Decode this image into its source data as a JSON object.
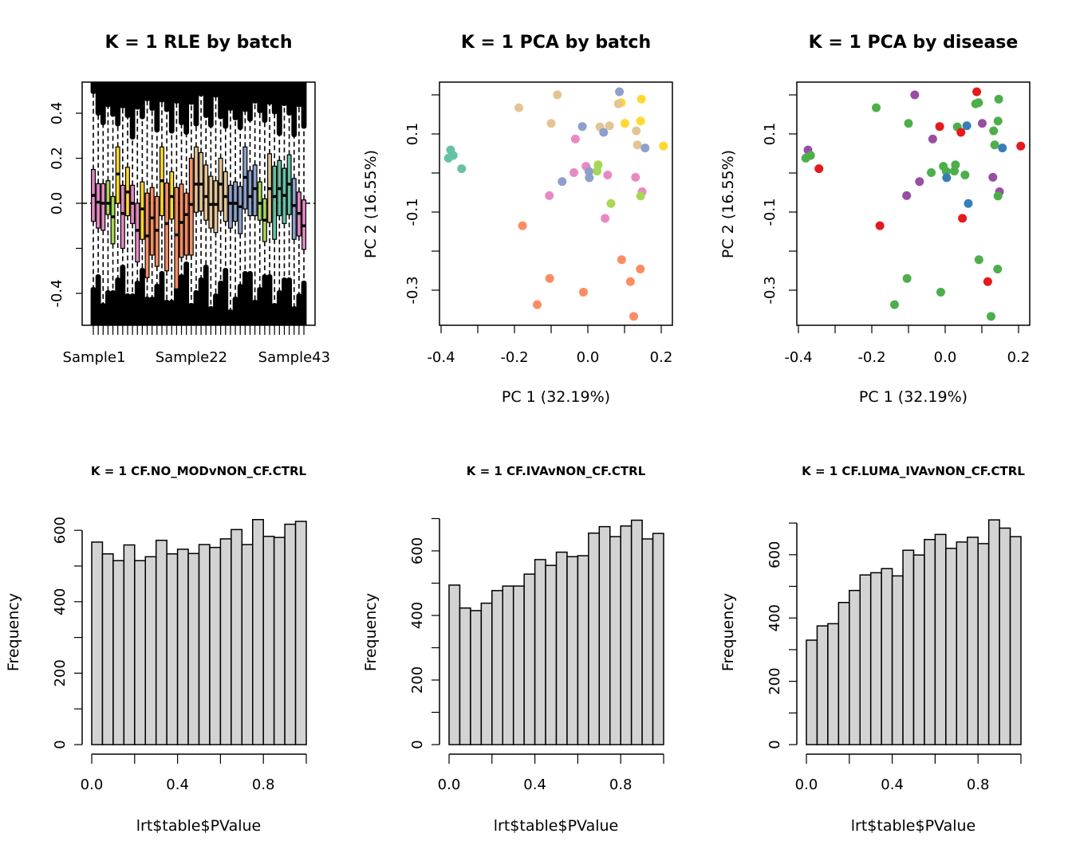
{
  "chart_data": [
    {
      "type": "box",
      "title": "K = 1 RLE by batch",
      "xlabel": "",
      "ylabel": "",
      "ylim": [
        -0.54,
        0.54
      ],
      "yticks": [
        -0.4,
        -0.2,
        0.0,
        0.2,
        0.4
      ],
      "ytick_labels": [
        "-0.4",
        "",
        "0.0",
        "0.2",
        "0.4"
      ],
      "xtick_labels": [
        "Sample1",
        "Sample22",
        "Sample43"
      ],
      "reference_line": 0,
      "batch_colors": {
        "pink": "#E78AC3",
        "green": "#A6D854",
        "yellow": "#FFD92F",
        "orange": "#FC8D62",
        "tan": "#E5C494",
        "blue": "#8DA0CB",
        "teal": "#66C2A5"
      },
      "boxes": [
        [
          "pink",
          0.15,
          0.035,
          -0.08
        ],
        [
          "pink",
          0.087,
          0.005,
          -0.11
        ],
        [
          "pink",
          0.087,
          0,
          -0.12
        ],
        [
          "green",
          0.1,
          0,
          -0.05
        ],
        [
          "green",
          0.03,
          -0.06,
          -0.18
        ],
        [
          "yellow",
          0.25,
          0.13,
          0
        ],
        [
          "pink",
          0.08,
          -0.045,
          -0.2
        ],
        [
          "yellow",
          0.16,
          0.05,
          -0.055
        ],
        [
          "pink",
          0.08,
          0,
          -0.09
        ],
        [
          "pink",
          0,
          -0.12,
          -0.26
        ],
        [
          "yellow",
          0.095,
          -0.025,
          -0.16
        ],
        [
          "orange",
          0.045,
          -0.145,
          -0.33
        ],
        [
          "orange",
          0.07,
          -0.065,
          -0.23
        ],
        [
          "orange",
          0.03,
          -0.12,
          -0.28
        ],
        [
          "yellow",
          0.25,
          0.1,
          -0.055
        ],
        [
          "orange",
          0.09,
          -0.09,
          -0.3
        ],
        [
          "yellow",
          0.14,
          0.03,
          -0.07
        ],
        [
          "orange",
          0.07,
          -0.14,
          -0.38
        ],
        [
          "orange",
          0.085,
          -0.085,
          -0.24
        ],
        [
          "orange",
          0.045,
          -0.05,
          -0.23
        ],
        [
          "orange",
          0.2,
          -0.005,
          -0.23
        ],
        [
          "tan",
          0.25,
          0.085,
          -0.04
        ],
        [
          "tan",
          0.225,
          0.085,
          -0.035
        ],
        [
          "tan",
          0.17,
          0.03,
          -0.075
        ],
        [
          "tan",
          0.12,
          -0.005,
          -0.11
        ],
        [
          "tan",
          0.1,
          -0.005,
          -0.13
        ],
        [
          "tan",
          0.2,
          0.085,
          -0.035
        ],
        [
          "tan",
          0.14,
          0.03,
          -0.08
        ],
        [
          "blue",
          0.08,
          0,
          -0.11
        ],
        [
          "blue",
          0.095,
          0,
          -0.08
        ],
        [
          "blue",
          0.075,
          -0.015,
          -0.135
        ],
        [
          "blue",
          0.25,
          0.115,
          -0.025
        ],
        [
          "blue",
          0.145,
          0.03,
          -0.055
        ],
        [
          "blue",
          0.17,
          0.065,
          -0.055
        ],
        [
          "green",
          0.095,
          0,
          -0.075
        ],
        [
          "green",
          0.02,
          -0.075,
          -0.17
        ],
        [
          "tan",
          0.22,
          0.065,
          -0.085
        ],
        [
          "teal",
          0.165,
          0.03,
          -0.16
        ],
        [
          "teal",
          0.19,
          0.065,
          -0.055
        ],
        [
          "teal",
          0.155,
          0.035,
          -0.09
        ],
        [
          "teal",
          0.215,
          0.085,
          -0.05
        ],
        [
          "blue",
          0.11,
          -0.01,
          -0.16
        ],
        [
          "pink",
          0.05,
          -0.045,
          -0.145
        ],
        [
          "pink",
          0.015,
          -0.1,
          -0.205
        ]
      ],
      "box_fields": [
        "batch",
        "q3",
        "median",
        "q1"
      ]
    },
    {
      "type": "scatter",
      "title": "K = 1 PCA by batch",
      "xlabel": "PC 1 (32.19%)",
      "ylabel": "PC 2 (16.55%)",
      "xticks": [
        -0.4,
        -0.3,
        -0.2,
        -0.1,
        0,
        0.1,
        0.2
      ],
      "xtick_labels": [
        "-0.4",
        "",
        "-0.2",
        "",
        "0.0",
        "",
        "0.2"
      ],
      "yticks": [
        0.2,
        0.1,
        0,
        -0.1,
        -0.2,
        -0.3
      ],
      "ytick_labels": [
        "",
        "0.1",
        "",
        "-0.1",
        "",
        "-0.3"
      ],
      "colors": [
        "#8DA0CB",
        "#E5C494",
        "#FFD92F",
        "#FFD92F",
        "#E5C494",
        "#E5C494",
        "#E5C494",
        "#8DA0CB",
        "#E5C494",
        "#E5C494",
        "#FFD92F",
        "#FFD92F",
        "#8DA0CB",
        "#E5C494",
        "#E78AC3",
        "#E5C494",
        "#8DA0CB",
        "#FFD92F",
        "#66C2A5",
        "#66C2A5",
        "#66C2A5",
        "#66C2A5",
        "#A6D854",
        "#A6D854",
        "#E78AC3",
        "#8DA0CB",
        "#8DA0CB",
        "#E78AC3",
        "#E78AC3",
        "#8DA0CB",
        "#E78AC3",
        "#E78AC3",
        "#E78AC3",
        "#A6D854",
        "#A6D854",
        "#E78AC3",
        "#FC8D62",
        "#FC8D62",
        "#FC8D62",
        "#FC8D62",
        "#FC8D62",
        "#FC8D62",
        "#FC8D62",
        "#FC8D62"
      ]
    },
    {
      "type": "scatter",
      "title": "K = 1 PCA by disease",
      "xlabel": "PC 1 (32.19%)",
      "ylabel": "PC 2 (16.55%)",
      "xticks": [
        -0.4,
        -0.3,
        -0.2,
        -0.1,
        0,
        0.1,
        0.2
      ],
      "xtick_labels": [
        "-0.4",
        "",
        "-0.2",
        "",
        "0.0",
        "",
        "0.2"
      ],
      "yticks": [
        0.2,
        0.1,
        0,
        -0.1,
        -0.2,
        -0.3
      ],
      "ytick_labels": [
        "",
        "0.1",
        "",
        "-0.1",
        "",
        "-0.3"
      ],
      "colors": [
        "#E41A1C",
        "#984EA3",
        "#4DAF4A",
        "#4DAF4A",
        "#4DAF4A",
        "#4DAF4A",
        "#4DAF4A",
        "#E41A1C",
        "#4DAF4A",
        "#377EB8",
        "#984EA3",
        "#4DAF4A",
        "#E41A1C",
        "#4DAF4A",
        "#984EA3",
        "#4DAF4A",
        "#377EB8",
        "#E41A1C",
        "#984EA3",
        "#4DAF4A",
        "#4DAF4A",
        "#E41A1C",
        "#4DAF4A",
        "#4DAF4A",
        "#4DAF4A",
        "#4DAF4A",
        "#377EB8",
        "#4DAF4A",
        "#4DAF4A",
        "#984EA3",
        "#984EA3",
        "#984EA3",
        "#984EA3",
        "#4DAF4A",
        "#377EB8",
        "#E41A1C",
        "#E41A1C",
        "#4DAF4A",
        "#4DAF4A",
        "#4DAF4A",
        "#E41A1C",
        "#4DAF4A",
        "#4DAF4A",
        "#4DAF4A"
      ]
    },
    {
      "type": "bar",
      "title": "K = 1 CF.NO_MODvNON_CF.CTRL",
      "xlabel": "lrt$table$PValue",
      "ylabel": "Frequency",
      "bin_edges": [
        0,
        0.05,
        0.1,
        0.15,
        0.2,
        0.25,
        0.3,
        0.35,
        0.4,
        0.45,
        0.5,
        0.55,
        0.6,
        0.65,
        0.7,
        0.75,
        0.8,
        0.85,
        0.9,
        0.95,
        1.0
      ],
      "values": [
        567,
        534,
        515,
        559,
        515,
        526,
        572,
        534,
        547,
        535,
        560,
        552,
        576,
        602,
        560,
        630,
        583,
        580,
        617,
        625
      ],
      "xticks": [
        0,
        0.2,
        0.4,
        0.6,
        0.8,
        1.0
      ],
      "xtick_labels": [
        "0.0",
        "",
        "0.4",
        "",
        "0.8",
        ""
      ],
      "yticks": [
        0,
        100,
        200,
        300,
        400,
        500,
        600
      ],
      "ytick_labels": [
        "0",
        "",
        "200",
        "",
        "400",
        "",
        "600"
      ],
      "fill": "#D3D3D3"
    },
    {
      "type": "bar",
      "title": "K = 1 CF.IVAvNON_CF.CTRL",
      "xlabel": "lrt$table$PValue",
      "ylabel": "Frequency",
      "bin_edges": [
        0,
        0.05,
        0.1,
        0.15,
        0.2,
        0.25,
        0.3,
        0.35,
        0.4,
        0.45,
        0.5,
        0.55,
        0.6,
        0.65,
        0.7,
        0.75,
        0.8,
        0.85,
        0.9,
        0.95,
        1.0
      ],
      "values": [
        494,
        423,
        415,
        438,
        477,
        491,
        491,
        528,
        573,
        555,
        596,
        582,
        585,
        655,
        675,
        644,
        677,
        695,
        637,
        654
      ],
      "xticks": [
        0,
        0.2,
        0.4,
        0.6,
        0.8,
        1.0
      ],
      "xtick_labels": [
        "0.0",
        "",
        "0.4",
        "",
        "0.8",
        ""
      ],
      "yticks": [
        0,
        100,
        200,
        300,
        400,
        500,
        600,
        700
      ],
      "ytick_labels": [
        "0",
        "",
        "200",
        "",
        "400",
        "",
        "600",
        ""
      ],
      "fill": "#D3D3D3"
    },
    {
      "type": "bar",
      "title": "K = 1 CF.LUMA_IVAvNON_CF.CTRL",
      "xlabel": "lrt$table$PValue",
      "ylabel": "Frequency",
      "bin_edges": [
        0,
        0.05,
        0.1,
        0.15,
        0.2,
        0.25,
        0.3,
        0.35,
        0.4,
        0.45,
        0.5,
        0.55,
        0.6,
        0.65,
        0.7,
        0.75,
        0.8,
        0.85,
        0.9,
        0.95,
        1.0
      ],
      "values": [
        330,
        375,
        382,
        449,
        487,
        536,
        543,
        556,
        533,
        614,
        599,
        648,
        664,
        620,
        640,
        655,
        635,
        710,
        684,
        657
      ],
      "xticks": [
        0,
        0.2,
        0.4,
        0.6,
        0.8,
        1.0
      ],
      "xtick_labels": [
        "0.0",
        "",
        "0.4",
        "",
        "0.8",
        ""
      ],
      "yticks": [
        0,
        100,
        200,
        300,
        400,
        500,
        600,
        700
      ],
      "ytick_labels": [
        "0",
        "",
        "200",
        "",
        "400",
        "",
        "600",
        ""
      ],
      "fill": "#D3D3D3"
    }
  ],
  "pca_points": {
    "x": [
      0.086,
      -0.083,
      0.146,
      0.091,
      0.083,
      -0.188,
      -0.1,
      -0.015,
      0.033,
      0.059,
      0.101,
      0.144,
      0.043,
      0.132,
      -0.034,
      0.135,
      0.156,
      0.206,
      -0.374,
      -0.367,
      -0.38,
      -0.344,
      0.028,
      0.025,
      -0.005,
      0.003,
      0.004,
      -0.038,
      0.054,
      -0.07,
      0.13,
      -0.105,
      0.148,
      0.144,
      0.063,
      0.047,
      -0.178,
      0.092,
      0.143,
      -0.104,
      0.116,
      -0.012,
      -0.138,
      0.125
    ],
    "y": [
      0.208,
      0.2,
      0.189,
      0.18,
      0.177,
      0.167,
      0.127,
      0.119,
      0.118,
      0.121,
      0.127,
      0.133,
      0.104,
      0.108,
      0.087,
      0.072,
      0.064,
      0.069,
      0.059,
      0.045,
      0.038,
      0.011,
      0.021,
      0.005,
      0.017,
      0.004,
      -0.012,
      0.001,
      -0.005,
      -0.022,
      -0.011,
      -0.058,
      -0.048,
      -0.059,
      -0.078,
      -0.116,
      -0.135,
      -0.222,
      -0.246,
      -0.27,
      -0.278,
      -0.305,
      -0.337,
      -0.367
    ]
  }
}
